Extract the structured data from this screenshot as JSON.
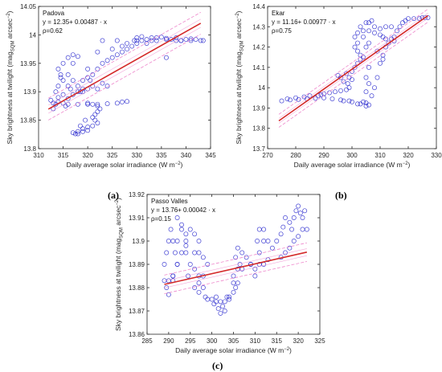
{
  "figure": {
    "captions": [
      "(a)",
      "(b)",
      "(c)"
    ]
  },
  "chart_data": [
    {
      "type": "scatter",
      "panel": "(a)",
      "xlabel": "Daily average solar irradiance (W m",
      "xlabel_sup": "−2",
      "xlabel_end": ")",
      "ylabel_parts": [
        "Sky brightness at twilight (mag",
        "SQM",
        " arcsec",
        "−2",
        ")"
      ],
      "xlim": [
        310,
        345
      ],
      "ylim": [
        13.8,
        14.05
      ],
      "xticks": [
        310,
        315,
        320,
        325,
        330,
        335,
        340,
        345
      ],
      "yticks": [
        13.8,
        13.85,
        13.9,
        13.95,
        14,
        14.05
      ],
      "ytick_labels": [
        "13.8",
        "13.85",
        "13.9",
        "13.95",
        "14",
        "14.05"
      ],
      "annotations": [
        "Padova",
        "y = 12.35+ 0.00487 · x",
        "ρ=0.62"
      ],
      "fit": {
        "intercept": 12.35,
        "slope": 0.00487,
        "x_range": [
          312,
          343
        ],
        "band": 0.012
      },
      "points": [
        [
          312.5,
          13.885
        ],
        [
          313,
          13.88
        ],
        [
          313.5,
          13.878
        ],
        [
          314,
          13.882
        ],
        [
          314,
          13.89
        ],
        [
          313.5,
          13.9
        ],
        [
          314,
          13.91
        ],
        [
          314.5,
          13.93
        ],
        [
          314,
          13.94
        ],
        [
          315,
          13.95
        ],
        [
          316,
          13.96
        ],
        [
          317,
          13.965
        ],
        [
          318,
          13.962
        ],
        [
          317,
          13.95
        ],
        [
          316,
          13.93
        ],
        [
          317,
          13.92
        ],
        [
          318,
          13.91
        ],
        [
          319,
          13.905
        ],
        [
          318.5,
          13.9
        ],
        [
          317,
          13.895
        ],
        [
          316,
          13.888
        ],
        [
          315,
          13.88
        ],
        [
          316,
          13.878
        ],
        [
          318,
          13.878
        ],
        [
          320,
          13.878
        ],
        [
          322,
          13.878
        ],
        [
          324,
          13.879
        ],
        [
          326,
          13.88
        ],
        [
          327,
          13.882
        ],
        [
          328,
          13.883
        ],
        [
          320,
          13.88
        ],
        [
          321,
          13.878
        ],
        [
          322,
          13.875
        ],
        [
          322.5,
          13.87
        ],
        [
          322,
          13.865
        ],
        [
          321.5,
          13.86
        ],
        [
          321,
          13.855
        ],
        [
          321.5,
          13.85
        ],
        [
          322,
          13.845
        ],
        [
          321,
          13.84
        ],
        [
          320,
          13.838
        ],
        [
          319,
          13.835
        ],
        [
          318,
          13.83
        ],
        [
          317.5,
          13.826
        ],
        [
          318,
          13.826
        ],
        [
          319,
          13.83
        ],
        [
          320,
          13.832
        ],
        [
          317,
          13.828
        ],
        [
          318.5,
          13.84
        ],
        [
          319.5,
          13.85
        ],
        [
          319,
          13.9
        ],
        [
          320,
          13.905
        ],
        [
          321,
          13.91
        ],
        [
          320.5,
          13.92
        ],
        [
          320,
          13.925
        ],
        [
          319,
          13.92
        ],
        [
          321,
          13.93
        ],
        [
          322,
          13.94
        ],
        [
          323,
          13.95
        ],
        [
          324,
          13.955
        ],
        [
          325,
          13.96
        ],
        [
          326,
          13.965
        ],
        [
          327,
          13.97
        ],
        [
          328,
          13.975
        ],
        [
          329,
          13.98
        ],
        [
          330,
          13.985
        ],
        [
          331,
          13.99
        ],
        [
          332,
          13.992
        ],
        [
          333,
          13.995
        ],
        [
          334,
          13.995
        ],
        [
          335,
          13.996
        ],
        [
          336,
          13.994
        ],
        [
          337,
          13.992
        ],
        [
          338,
          13.99
        ],
        [
          339,
          13.99
        ],
        [
          340,
          13.992
        ],
        [
          341,
          13.993
        ],
        [
          342,
          13.992
        ],
        [
          343,
          13.99
        ],
        [
          343.5,
          13.99
        ],
        [
          331,
          13.997
        ],
        [
          330,
          13.995
        ],
        [
          329.5,
          13.99
        ],
        [
          332,
          13.985
        ],
        [
          334,
          13.99
        ],
        [
          336,
          13.992
        ],
        [
          338,
          13.995
        ],
        [
          315,
          13.895
        ],
        [
          316.5,
          13.905
        ],
        [
          322,
          13.905
        ],
        [
          324,
          13.91
        ],
        [
          323,
          13.915
        ],
        [
          320,
          13.94
        ],
        [
          322,
          13.97
        ],
        [
          325,
          13.975
        ],
        [
          327,
          13.98
        ],
        [
          328,
          13.985
        ],
        [
          326,
          13.99
        ],
        [
          323,
          13.99
        ],
        [
          336,
          13.96
        ],
        [
          313,
          13.87
        ],
        [
          315.5,
          13.875
        ],
        [
          330,
          13.99
        ],
        [
          333,
          13.99
        ],
        [
          341,
          13.99
        ],
        [
          339,
          13.99
        ],
        [
          318,
          13.9
        ],
        [
          316,
          13.91
        ],
        [
          315,
          13.92
        ],
        [
          314.5,
          13.925
        ]
      ]
    },
    {
      "type": "scatter",
      "panel": "(b)",
      "xlabel": "Daily average solar irradiance (W m",
      "xlabel_sup": "−2",
      "xlabel_end": ")",
      "ylabel_parts": [
        "Sky brightness at twilight (mag",
        "SQM",
        " arcsec",
        "−2",
        ")"
      ],
      "xlim": [
        270,
        330
      ],
      "ylim": [
        13.7,
        14.4
      ],
      "xticks": [
        270,
        280,
        290,
        300,
        310,
        320,
        330
      ],
      "yticks": [
        13.7,
        13.8,
        13.9,
        14,
        14.1,
        14.2,
        14.3,
        14.4
      ],
      "ytick_labels": [
        "13.7",
        "13.8",
        "13.9",
        "14",
        "14.1",
        "14.2",
        "14.3",
        "14.4"
      ],
      "annotations": [
        "Ekar",
        "y = 11.16+ 0.00977 · x",
        "ρ=0.75"
      ],
      "fit": {
        "intercept": 11.16,
        "slope": 0.00977,
        "x_range": [
          274,
          327
        ],
        "band": 0.02
      },
      "points": [
        [
          275,
          13.935
        ],
        [
          278,
          13.94
        ],
        [
          281,
          13.942
        ],
        [
          284,
          13.945
        ],
        [
          287,
          13.948
        ],
        [
          290,
          13.95
        ],
        [
          293,
          13.945
        ],
        [
          296,
          13.94
        ],
        [
          299,
          13.935
        ],
        [
          302,
          13.92
        ],
        [
          305,
          13.91
        ],
        [
          306,
          13.915
        ],
        [
          304,
          13.93
        ],
        [
          300,
          13.93
        ],
        [
          297,
          13.935
        ],
        [
          288,
          13.96
        ],
        [
          290,
          13.97
        ],
        [
          292,
          13.975
        ],
        [
          294,
          13.98
        ],
        [
          296,
          13.985
        ],
        [
          298,
          13.99
        ],
        [
          299,
          14.0
        ],
        [
          298.5,
          14.02
        ],
        [
          299,
          14.05
        ],
        [
          298,
          14.07
        ],
        [
          300,
          14.08
        ],
        [
          301,
          14.1
        ],
        [
          302,
          14.12
        ],
        [
          303,
          14.14
        ],
        [
          303,
          14.16
        ],
        [
          302,
          14.18
        ],
        [
          301,
          14.2
        ],
        [
          302,
          14.22
        ],
        [
          301,
          14.25
        ],
        [
          302,
          14.27
        ],
        [
          304,
          14.28
        ],
        [
          306,
          14.28
        ],
        [
          308,
          14.27
        ],
        [
          310,
          14.26
        ],
        [
          311,
          14.25
        ],
        [
          306,
          14.22
        ],
        [
          305,
          14.2
        ],
        [
          304,
          14.15
        ],
        [
          306,
          14.1
        ],
        [
          305,
          14.05
        ],
        [
          306,
          14.02
        ],
        [
          305,
          13.98
        ],
        [
          307,
          13.96
        ],
        [
          308,
          14.0
        ],
        [
          309,
          14.05
        ],
        [
          310,
          14.12
        ],
        [
          311,
          14.16
        ],
        [
          312,
          14.2
        ],
        [
          314,
          14.24
        ],
        [
          315,
          14.25
        ],
        [
          316,
          14.28
        ],
        [
          317,
          14.3
        ],
        [
          318,
          14.32
        ],
        [
          319,
          14.33
        ],
        [
          320,
          14.34
        ],
        [
          322,
          14.34
        ],
        [
          324,
          14.34
        ],
        [
          325,
          14.345
        ],
        [
          326,
          14.345
        ],
        [
          327,
          14.345
        ],
        [
          314,
          14.3
        ],
        [
          312,
          14.3
        ],
        [
          310,
          14.29
        ],
        [
          308,
          14.3
        ],
        [
          306,
          14.32
        ],
        [
          305,
          14.32
        ],
        [
          307,
          14.33
        ],
        [
          303,
          14.3
        ],
        [
          304,
          14.25
        ],
        [
          309,
          14.18
        ],
        [
          311,
          14.14
        ],
        [
          296,
          14.05
        ],
        [
          295,
          14.06
        ],
        [
          297,
          14.03
        ],
        [
          300,
          14.04
        ],
        [
          285,
          13.96
        ],
        [
          283,
          13.955
        ],
        [
          280,
          13.95
        ],
        [
          277,
          13.945
        ],
        [
          289,
          13.965
        ],
        [
          303,
          13.92
        ],
        [
          305,
          13.925
        ],
        [
          312,
          14.24
        ],
        [
          313,
          14.22
        ],
        [
          315,
          14.23
        ]
      ]
    },
    {
      "type": "scatter",
      "panel": "(c)",
      "xlabel": "Daily average solar irradiance (W m",
      "xlabel_sup": "−2",
      "xlabel_end": ")",
      "ylabel_parts": [
        "Sky brightness at twilight (mag",
        "SQM",
        " arcsec",
        "−2",
        ")"
      ],
      "xlim": [
        285,
        325
      ],
      "ylim": [
        13.86,
        13.92
      ],
      "xticks": [
        285,
        290,
        295,
        300,
        305,
        310,
        315,
        320,
        325
      ],
      "yticks": [
        13.86,
        13.87,
        13.88,
        13.89,
        13.9,
        13.91,
        13.92
      ],
      "ytick_labels": [
        "13.86",
        "13.87",
        "13.88",
        "13.89",
        "13.9",
        "13.91",
        "13.92"
      ],
      "annotations": [
        "Passo Valles",
        "y = 13.76+ 0.00042 · x",
        "ρ=0.15"
      ],
      "fit": {
        "intercept": 13.76,
        "slope": 0.00042,
        "x_range": [
          289,
          322
        ],
        "band": 0.0025
      },
      "points": [
        [
          289,
          13.89
        ],
        [
          289.5,
          13.895
        ],
        [
          290,
          13.9
        ],
        [
          290.5,
          13.905
        ],
        [
          291,
          13.9
        ],
        [
          291.5,
          13.895
        ],
        [
          292,
          13.89
        ],
        [
          291,
          13.885
        ],
        [
          290,
          13.883
        ],
        [
          289.5,
          13.88
        ],
        [
          290,
          13.877
        ],
        [
          291,
          13.883
        ],
        [
          292,
          13.89
        ],
        [
          293,
          13.895
        ],
        [
          294,
          13.9
        ],
        [
          293,
          13.905
        ],
        [
          292,
          13.9
        ],
        [
          294,
          13.895
        ],
        [
          295,
          13.89
        ],
        [
          294.5,
          13.885
        ],
        [
          296,
          13.895
        ],
        [
          297,
          13.9
        ],
        [
          296,
          13.903
        ],
        [
          295,
          13.905
        ],
        [
          294,
          13.898
        ],
        [
          297,
          13.895
        ],
        [
          298,
          13.893
        ],
        [
          299,
          13.89
        ],
        [
          298,
          13.885
        ],
        [
          297,
          13.882
        ],
        [
          296,
          13.88
        ],
        [
          297,
          13.878
        ],
        [
          298.5,
          13.876
        ],
        [
          300,
          13.875
        ],
        [
          301,
          13.874
        ],
        [
          302,
          13.874
        ],
        [
          303,
          13.874
        ],
        [
          304,
          13.875
        ],
        [
          302.5,
          13.872
        ],
        [
          301.5,
          13.871
        ],
        [
          300.5,
          13.873
        ],
        [
          303,
          13.87
        ],
        [
          302,
          13.869
        ],
        [
          304,
          13.876
        ],
        [
          305,
          13.878
        ],
        [
          305.5,
          13.88
        ],
        [
          306,
          13.882
        ],
        [
          305,
          13.885
        ],
        [
          306,
          13.888
        ],
        [
          306.5,
          13.89
        ],
        [
          305.5,
          13.893
        ],
        [
          307,
          13.895
        ],
        [
          308,
          13.893
        ],
        [
          309,
          13.89
        ],
        [
          310,
          13.888
        ],
        [
          311,
          13.89
        ],
        [
          311,
          13.895
        ],
        [
          310.5,
          13.9
        ],
        [
          311,
          13.905
        ],
        [
          312,
          13.905
        ],
        [
          313,
          13.9
        ],
        [
          314,
          13.897
        ],
        [
          315,
          13.9
        ],
        [
          316,
          13.903
        ],
        [
          316.5,
          13.906
        ],
        [
          317,
          13.91
        ],
        [
          318,
          13.908
        ],
        [
          318.5,
          13.905
        ],
        [
          319,
          13.91
        ],
        [
          319.5,
          13.913
        ],
        [
          320,
          13.915
        ],
        [
          320.5,
          13.912
        ],
        [
          321,
          13.91
        ],
        [
          321.5,
          13.913
        ],
        [
          321,
          13.905
        ],
        [
          320,
          13.902
        ],
        [
          319,
          13.9
        ],
        [
          318,
          13.897
        ],
        [
          317,
          13.895
        ],
        [
          316,
          13.893
        ],
        [
          313,
          13.892
        ],
        [
          312,
          13.89
        ],
        [
          310,
          13.885
        ],
        [
          309,
          13.89
        ],
        [
          307,
          13.888
        ],
        [
          292,
          13.91
        ],
        [
          293,
          13.907
        ],
        [
          294,
          13.903
        ],
        [
          291,
          13.885
        ],
        [
          289,
          13.883
        ],
        [
          296,
          13.888
        ],
        [
          297,
          13.885
        ],
        [
          298,
          13.88
        ],
        [
          299,
          13.875
        ],
        [
          301,
          13.876
        ],
        [
          303.5,
          13.876
        ],
        [
          305,
          13.882
        ],
        [
          306,
          13.897
        ],
        [
          312,
          13.9
        ],
        [
          322,
          13.905
        ]
      ]
    }
  ],
  "colors": {
    "points": "#2222cc",
    "fit": "#d42a2a",
    "band": "#ee88cc",
    "axis": "#262626"
  }
}
